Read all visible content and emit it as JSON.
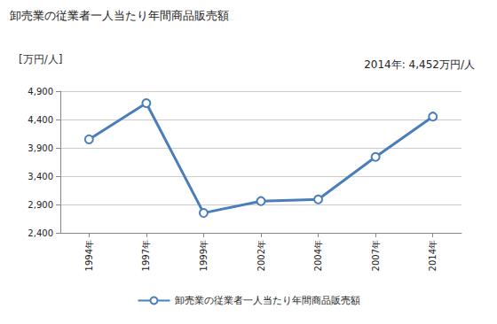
{
  "chart_data": {
    "type": "line",
    "title": "卸売業の従業者一人当たり年間商品販売額",
    "y_label": "[万円/人]",
    "annotation": "2014年: 4,452万円/人",
    "categories": [
      "1994年",
      "1997年",
      "1999年",
      "2002年",
      "2004年",
      "2007年",
      "2014年"
    ],
    "series": [
      {
        "name": "卸売業の従業者一人当たり年間商品販売額",
        "color": "#4a7ebb",
        "marker": "circle",
        "values": [
          4050,
          4690,
          2750,
          2960,
          2990,
          3740,
          4452
        ]
      }
    ],
    "ylim": [
      2400,
      4900
    ],
    "yticks": [
      {
        "value": 2400,
        "label": "2,400"
      },
      {
        "value": 2900,
        "label": "2,900"
      },
      {
        "value": 3400,
        "label": "3,400"
      },
      {
        "value": 3900,
        "label": "3,900"
      },
      {
        "value": 4400,
        "label": "4,400"
      },
      {
        "value": 4900,
        "label": "4,900"
      }
    ],
    "grid": true,
    "legend": "bottom"
  }
}
